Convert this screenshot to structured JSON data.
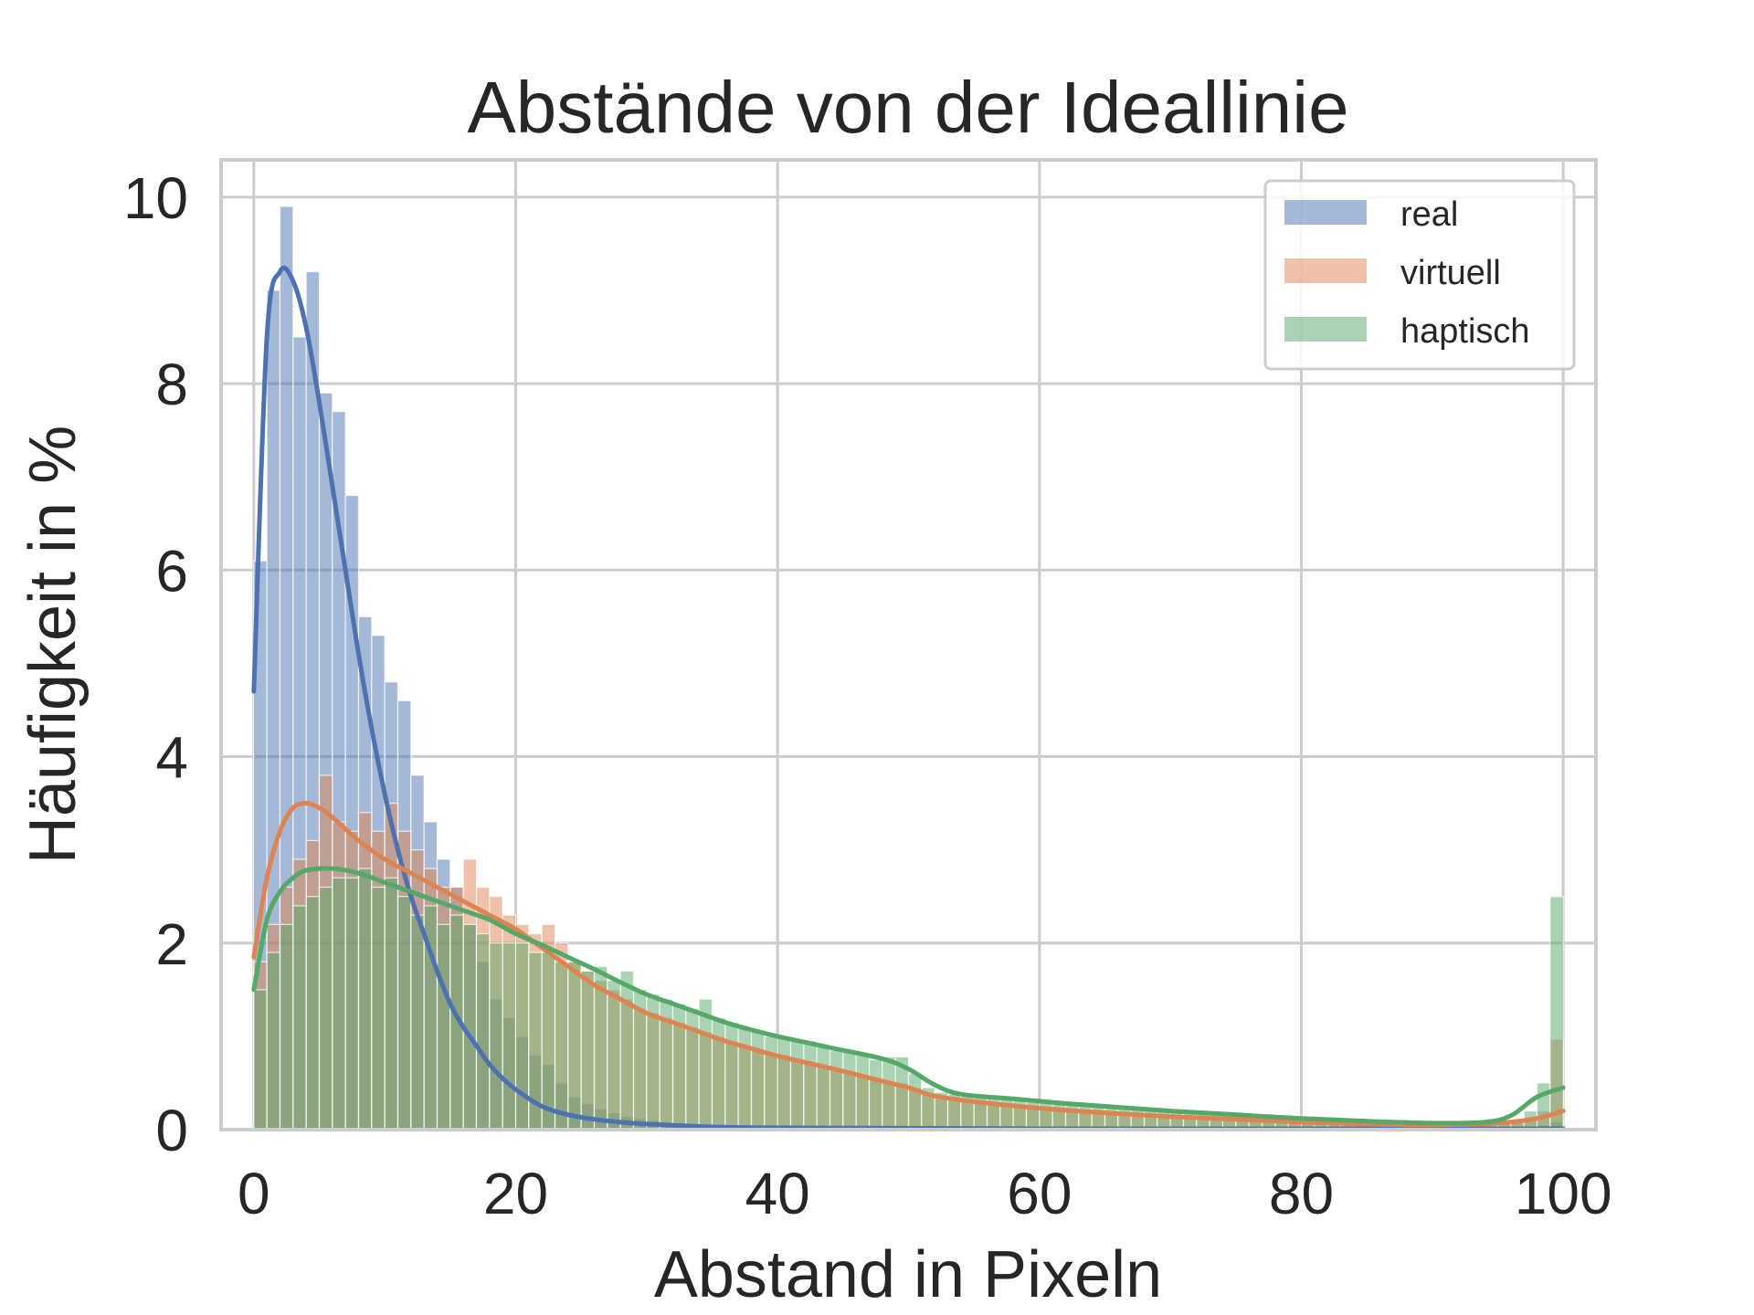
{
  "chart_data": {
    "type": "histogram",
    "title": "Abstände von der Ideallinie",
    "xlabel": "Abstand in Pixeln",
    "ylabel": "Häufigkeit in %",
    "xlim": [
      -2.5,
      102.5
    ],
    "ylim": [
      0,
      10.4
    ],
    "xticks": [
      0,
      20,
      40,
      60,
      80,
      100
    ],
    "yticks": [
      0,
      2,
      4,
      6,
      8,
      10
    ],
    "grid": true,
    "legend_position": "top-right",
    "bin_width": 1,
    "series": [
      {
        "name": "real",
        "color": "#4c72b0",
        "values": [
          6.1,
          9.0,
          9.9,
          8.5,
          9.2,
          7.9,
          7.7,
          6.8,
          5.5,
          5.3,
          4.8,
          4.6,
          3.8,
          3.3,
          2.9,
          2.6,
          2.2,
          1.8,
          1.4,
          1.2,
          1.0,
          0.8,
          0.7,
          0.5,
          0.35,
          0.28,
          0.22,
          0.18,
          0.14,
          0.12,
          0.1,
          0.08,
          0.07,
          0.06,
          0.05,
          0.04,
          0.04,
          0.03,
          0.03,
          0.02,
          0.02,
          0.02,
          0.02,
          0.01,
          0.01,
          0.01,
          0.01,
          0.01,
          0.01,
          0.01,
          0.01,
          0.01,
          0.01,
          0.01,
          0.01,
          0.01,
          0.01,
          0.01,
          0.01,
          0.01,
          0.01,
          0.01,
          0.01,
          0.01,
          0.01,
          0.01,
          0.01,
          0.01,
          0.01,
          0.01,
          0.01,
          0.01,
          0.01,
          0.01,
          0.01,
          0.01,
          0.01,
          0.01,
          0.01,
          0.01,
          0.01,
          0.01,
          0.01,
          0.01,
          0.01,
          0.01,
          0.01,
          0.01,
          0.01,
          0.01,
          0.01,
          0.01,
          0.01,
          0.01,
          0.01,
          0.01,
          0.01,
          0.01,
          0.05,
          0.08
        ],
        "kde": [
          [
            0,
            4.7
          ],
          [
            1,
            8.5
          ],
          [
            2,
            9.2
          ],
          [
            3,
            9.1
          ],
          [
            4,
            8.6
          ],
          [
            5,
            7.8
          ],
          [
            6,
            6.9
          ],
          [
            7,
            6.0
          ],
          [
            8,
            5.1
          ],
          [
            9,
            4.3
          ],
          [
            10,
            3.6
          ],
          [
            11,
            3.0
          ],
          [
            12,
            2.5
          ],
          [
            13,
            2.1
          ],
          [
            14,
            1.7
          ],
          [
            15,
            1.35
          ],
          [
            16,
            1.1
          ],
          [
            17,
            0.9
          ],
          [
            18,
            0.7
          ],
          [
            19,
            0.55
          ],
          [
            20,
            0.43
          ],
          [
            22,
            0.25
          ],
          [
            24,
            0.16
          ],
          [
            26,
            0.11
          ],
          [
            28,
            0.08
          ],
          [
            30,
            0.06
          ],
          [
            35,
            0.03
          ],
          [
            40,
            0.02
          ],
          [
            60,
            0.01
          ],
          [
            95,
            0.01
          ],
          [
            100,
            0.01
          ]
        ]
      },
      {
        "name": "virtuell",
        "color": "#dd8452",
        "values": [
          1.8,
          2.2,
          2.6,
          2.9,
          3.1,
          3.8,
          3.3,
          3.2,
          3.4,
          3.2,
          3.5,
          3.2,
          3.0,
          2.8,
          2.6,
          2.6,
          2.9,
          2.6,
          2.5,
          2.3,
          2.2,
          2.1,
          2.2,
          2.0,
          1.8,
          1.7,
          1.6,
          1.5,
          1.4,
          1.3,
          1.25,
          1.2,
          1.15,
          1.1,
          1.05,
          1.0,
          0.95,
          0.9,
          0.85,
          0.82,
          0.8,
          0.76,
          0.72,
          0.68,
          0.64,
          0.6,
          0.57,
          0.55,
          0.52,
          0.5,
          0.45,
          0.38,
          0.33,
          0.31,
          0.3,
          0.29,
          0.28,
          0.27,
          0.26,
          0.25,
          0.24,
          0.23,
          0.22,
          0.21,
          0.2,
          0.19,
          0.18,
          0.17,
          0.16,
          0.15,
          0.14,
          0.13,
          0.12,
          0.11,
          0.1,
          0.1,
          0.09,
          0.09,
          0.08,
          0.08,
          0.07,
          0.07,
          0.06,
          0.06,
          0.06,
          0.05,
          0.05,
          0.05,
          0.05,
          0.05,
          0.05,
          0.05,
          0.05,
          0.05,
          0.05,
          0.06,
          0.08,
          0.12,
          0.2,
          0.97
        ],
        "kde": [
          [
            0,
            1.85
          ],
          [
            1,
            2.7
          ],
          [
            2,
            3.2
          ],
          [
            3,
            3.45
          ],
          [
            4,
            3.5
          ],
          [
            5,
            3.45
          ],
          [
            6,
            3.35
          ],
          [
            8,
            3.1
          ],
          [
            10,
            2.9
          ],
          [
            12,
            2.75
          ],
          [
            14,
            2.6
          ],
          [
            16,
            2.45
          ],
          [
            18,
            2.3
          ],
          [
            20,
            2.15
          ],
          [
            22,
            1.95
          ],
          [
            24,
            1.75
          ],
          [
            26,
            1.55
          ],
          [
            28,
            1.4
          ],
          [
            30,
            1.25
          ],
          [
            32,
            1.15
          ],
          [
            34,
            1.05
          ],
          [
            36,
            0.95
          ],
          [
            38,
            0.87
          ],
          [
            40,
            0.79
          ],
          [
            44,
            0.66
          ],
          [
            48,
            0.52
          ],
          [
            50,
            0.45
          ],
          [
            52,
            0.36
          ],
          [
            55,
            0.3
          ],
          [
            60,
            0.23
          ],
          [
            65,
            0.18
          ],
          [
            70,
            0.14
          ],
          [
            75,
            0.11
          ],
          [
            80,
            0.08
          ],
          [
            85,
            0.06
          ],
          [
            90,
            0.05
          ],
          [
            95,
            0.07
          ],
          [
            98,
            0.12
          ],
          [
            100,
            0.2
          ]
        ]
      },
      {
        "name": "haptisch",
        "color": "#55a868",
        "values": [
          1.5,
          1.9,
          2.2,
          2.4,
          2.5,
          2.6,
          2.7,
          2.7,
          2.8,
          2.6,
          2.7,
          2.5,
          2.3,
          2.4,
          2.2,
          2.3,
          2.2,
          2.1,
          2.0,
          2.0,
          2.0,
          1.9,
          1.9,
          1.8,
          1.8,
          1.7,
          1.75,
          1.6,
          1.7,
          1.5,
          1.45,
          1.4,
          1.35,
          1.3,
          1.4,
          1.2,
          1.15,
          1.1,
          1.05,
          1.0,
          1.0,
          0.95,
          0.95,
          0.9,
          0.85,
          0.85,
          0.8,
          0.75,
          0.78,
          0.78,
          0.6,
          0.45,
          0.4,
          0.38,
          0.36,
          0.35,
          0.34,
          0.33,
          0.32,
          0.3,
          0.29,
          0.28,
          0.27,
          0.26,
          0.25,
          0.24,
          0.23,
          0.22,
          0.21,
          0.2,
          0.19,
          0.18,
          0.17,
          0.16,
          0.15,
          0.14,
          0.13,
          0.12,
          0.11,
          0.1,
          0.1,
          0.09,
          0.09,
          0.08,
          0.08,
          0.07,
          0.07,
          0.06,
          0.06,
          0.06,
          0.06,
          0.06,
          0.06,
          0.06,
          0.07,
          0.08,
          0.1,
          0.2,
          0.5,
          2.5
        ],
        "kde": [
          [
            0,
            1.5
          ],
          [
            1,
            2.25
          ],
          [
            2,
            2.55
          ],
          [
            3,
            2.7
          ],
          [
            4,
            2.78
          ],
          [
            6,
            2.8
          ],
          [
            8,
            2.75
          ],
          [
            10,
            2.65
          ],
          [
            12,
            2.55
          ],
          [
            14,
            2.45
          ],
          [
            16,
            2.35
          ],
          [
            18,
            2.25
          ],
          [
            20,
            2.1
          ],
          [
            22,
            1.98
          ],
          [
            24,
            1.85
          ],
          [
            26,
            1.72
          ],
          [
            28,
            1.58
          ],
          [
            30,
            1.45
          ],
          [
            32,
            1.35
          ],
          [
            34,
            1.25
          ],
          [
            36,
            1.15
          ],
          [
            38,
            1.07
          ],
          [
            40,
            1.0
          ],
          [
            44,
            0.88
          ],
          [
            48,
            0.76
          ],
          [
            50,
            0.65
          ],
          [
            52,
            0.48
          ],
          [
            54,
            0.38
          ],
          [
            58,
            0.33
          ],
          [
            62,
            0.28
          ],
          [
            66,
            0.24
          ],
          [
            70,
            0.2
          ],
          [
            75,
            0.16
          ],
          [
            80,
            0.12
          ],
          [
            85,
            0.09
          ],
          [
            90,
            0.07
          ],
          [
            94,
            0.08
          ],
          [
            96,
            0.15
          ],
          [
            98,
            0.35
          ],
          [
            100,
            0.45
          ]
        ]
      }
    ]
  }
}
